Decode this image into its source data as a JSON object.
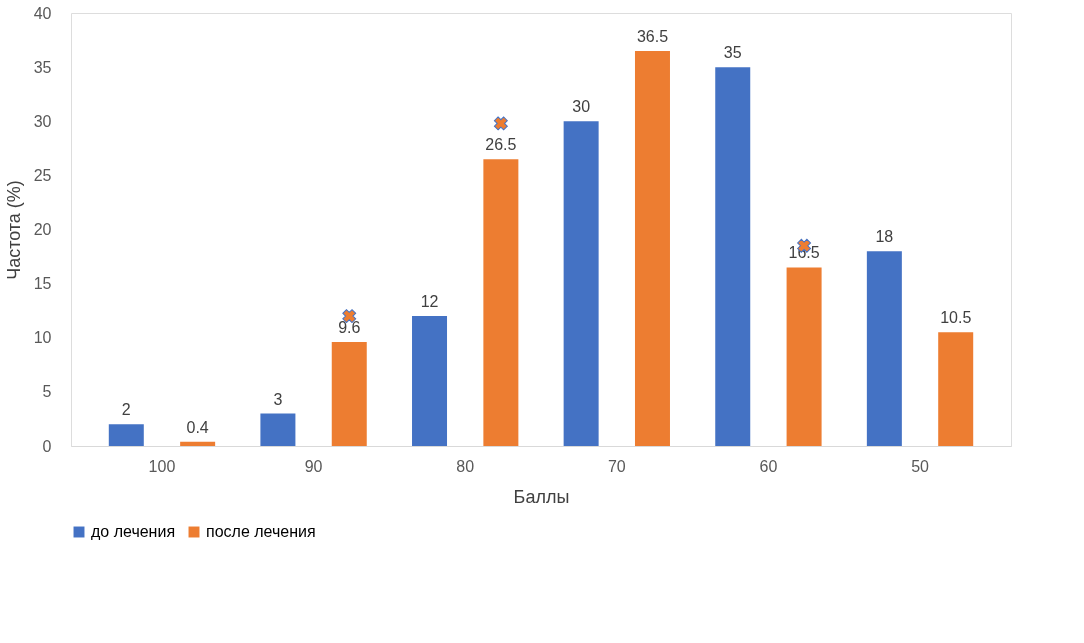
{
  "chart_data": {
    "type": "bar",
    "xlabel": "Баллы",
    "ylabel": "Частота (%)",
    "categories": [
      "100",
      "90",
      "80",
      "70",
      "60",
      "50"
    ],
    "ylim": [
      0,
      40
    ],
    "yticks": [
      0,
      5,
      10,
      15,
      20,
      25,
      30,
      35,
      40
    ],
    "grid": false,
    "legend": "bottom",
    "series": [
      {
        "name": "до лечения",
        "color": "#4472c4",
        "values": [
          2,
          3,
          12,
          30,
          35,
          18
        ],
        "value_labels": [
          "2",
          "3",
          "12",
          "30",
          "35",
          "18"
        ]
      },
      {
        "name": "после лечения",
        "color": "#ed7d31",
        "values": [
          0.4,
          9.6,
          26.5,
          36.5,
          16.5,
          10.5
        ],
        "value_labels": [
          "0.4",
          "9.6",
          "26.5",
          "36.5",
          "16.5",
          "10.5"
        ]
      },
      {
        "type": "scatter",
        "marker": "cross",
        "color": "#ed7d31",
        "x": [
          "90",
          "80",
          "60"
        ],
        "values": [
          12,
          29.8,
          18.5
        ]
      }
    ]
  }
}
